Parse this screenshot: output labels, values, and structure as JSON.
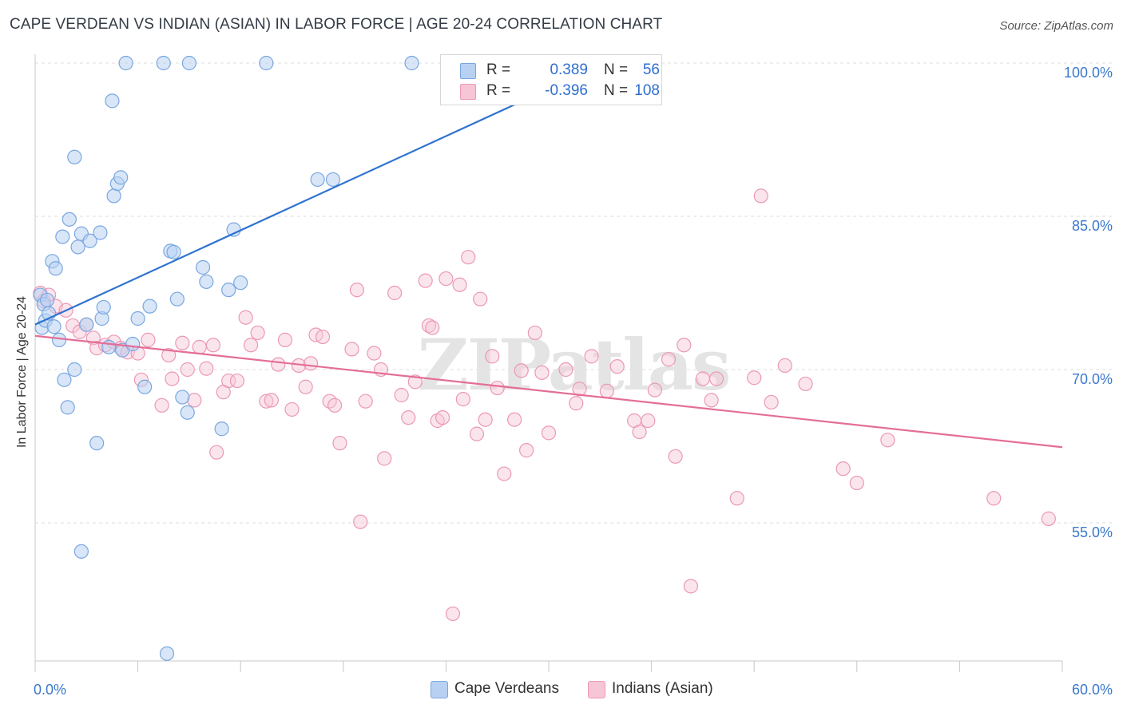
{
  "title": "CAPE VERDEAN VS INDIAN (ASIAN) IN LABOR FORCE | AGE 20-24 CORRELATION CHART",
  "source": "Source: ZipAtlas.com",
  "watermark": "ZIPatlas",
  "colors": {
    "blue_fill": "#b8d1f2",
    "blue_stroke": "#7aa7e0",
    "blue_line": "#2f73d0",
    "pink_fill": "#f7c6d6",
    "pink_stroke": "#eb98b4",
    "pink_line": "#e46e98",
    "axis_text": "#3b78cc",
    "grid": "#dcdcdc"
  },
  "legend": {
    "rows": [
      {
        "r_label": "R =",
        "r_value": "0.389",
        "n_label": "N =",
        "n_value": "56",
        "color": "#b8d1f2",
        "border": "#7aa7e0"
      },
      {
        "r_label": "R =",
        "r_value": "-0.396",
        "n_label": "N =",
        "n_value": "108",
        "color": "#f7c6d6",
        "border": "#eb98b4"
      }
    ]
  },
  "bottom_legend": [
    {
      "label": "Cape Verdeans",
      "color": "#b8d1f2",
      "border": "#7aa7e0"
    },
    {
      "label": "Indians (Asian)",
      "color": "#f7c6d6",
      "border": "#eb98b4"
    }
  ],
  "chart_data": {
    "type": "scatter",
    "title": "CAPE VERDEAN VS INDIAN (ASIAN) IN LABOR FORCE | AGE 20-24 CORRELATION CHART",
    "xlabel": "",
    "ylabel": "In Labor Force | Age 20-24",
    "xlim": [
      0,
      60
    ],
    "ylim": [
      40,
      102
    ],
    "x_tick_labels": [
      {
        "value": 0,
        "label": "0.0%"
      },
      {
        "value": 60,
        "label": "60.0%"
      }
    ],
    "y_tick_labels": [
      {
        "value": 55,
        "label": "55.0%"
      },
      {
        "value": 70,
        "label": "70.0%"
      },
      {
        "value": 85,
        "label": "85.0%"
      },
      {
        "value": 100,
        "label": "100.0%"
      }
    ],
    "series": [
      {
        "name": "Cape Verdeans",
        "R": 0.389,
        "N": 56,
        "trend": {
          "x0": 0,
          "y0": 74.4,
          "x1": 33.3,
          "y1": 100.0
        },
        "points": [
          [
            0.3,
            77.3
          ],
          [
            0.4,
            74.1
          ],
          [
            0.5,
            76.4
          ],
          [
            0.6,
            74.8
          ],
          [
            0.7,
            76.8
          ],
          [
            0.8,
            75.5
          ],
          [
            1.0,
            80.6
          ],
          [
            1.1,
            74.2
          ],
          [
            1.2,
            79.9
          ],
          [
            1.4,
            72.9
          ],
          [
            1.6,
            83.0
          ],
          [
            1.7,
            69.0
          ],
          [
            1.9,
            66.3
          ],
          [
            2.0,
            84.7
          ],
          [
            2.3,
            90.8
          ],
          [
            2.3,
            70.0
          ],
          [
            2.5,
            82.0
          ],
          [
            2.7,
            52.2
          ],
          [
            2.7,
            83.3
          ],
          [
            3.0,
            74.4
          ],
          [
            3.2,
            82.6
          ],
          [
            3.6,
            62.8
          ],
          [
            3.8,
            83.4
          ],
          [
            3.9,
            75.0
          ],
          [
            4.0,
            76.1
          ],
          [
            4.3,
            72.2
          ],
          [
            4.5,
            96.3
          ],
          [
            4.6,
            87.0
          ],
          [
            4.8,
            88.2
          ],
          [
            5.0,
            88.8
          ],
          [
            5.1,
            71.9
          ],
          [
            5.3,
            100.0
          ],
          [
            5.7,
            72.5
          ],
          [
            6.0,
            75.0
          ],
          [
            6.4,
            68.3
          ],
          [
            6.7,
            76.2
          ],
          [
            7.5,
            100.0
          ],
          [
            7.7,
            42.2
          ],
          [
            7.9,
            81.6
          ],
          [
            8.1,
            81.5
          ],
          [
            8.3,
            76.9
          ],
          [
            8.6,
            67.3
          ],
          [
            8.9,
            65.8
          ],
          [
            9.0,
            100.0
          ],
          [
            9.8,
            80.0
          ],
          [
            10.0,
            78.6
          ],
          [
            10.9,
            64.2
          ],
          [
            11.3,
            77.8
          ],
          [
            11.6,
            83.7
          ],
          [
            12.0,
            78.5
          ],
          [
            13.5,
            100.0
          ],
          [
            16.5,
            88.6
          ],
          [
            17.4,
            88.6
          ],
          [
            22.0,
            100.0
          ]
        ]
      },
      {
        "name": "Indians (Asian)",
        "R": -0.396,
        "N": 108,
        "trend": {
          "x0": 0,
          "y0": 73.3,
          "x1": 60,
          "y1": 62.4
        },
        "points": [
          [
            0.3,
            77.5
          ],
          [
            0.5,
            76.7
          ],
          [
            0.8,
            77.3
          ],
          [
            1.2,
            76.2
          ],
          [
            1.8,
            75.8
          ],
          [
            2.2,
            74.3
          ],
          [
            2.6,
            73.7
          ],
          [
            3.0,
            74.4
          ],
          [
            3.4,
            73.1
          ],
          [
            3.6,
            72.1
          ],
          [
            4.1,
            72.4
          ],
          [
            4.6,
            72.7
          ],
          [
            5.0,
            72.1
          ],
          [
            5.4,
            71.7
          ],
          [
            6.0,
            71.6
          ],
          [
            6.2,
            69.0
          ],
          [
            6.6,
            72.9
          ],
          [
            7.4,
            66.5
          ],
          [
            7.8,
            71.4
          ],
          [
            8.0,
            69.1
          ],
          [
            8.6,
            72.6
          ],
          [
            8.9,
            70.0
          ],
          [
            9.3,
            67.0
          ],
          [
            9.6,
            72.2
          ],
          [
            10.0,
            70.1
          ],
          [
            10.4,
            72.4
          ],
          [
            10.6,
            61.9
          ],
          [
            11.0,
            67.8
          ],
          [
            11.3,
            68.9
          ],
          [
            11.8,
            68.9
          ],
          [
            12.3,
            75.1
          ],
          [
            12.6,
            72.4
          ],
          [
            13.0,
            73.6
          ],
          [
            13.5,
            66.9
          ],
          [
            13.8,
            67.0
          ],
          [
            14.2,
            70.5
          ],
          [
            14.6,
            72.9
          ],
          [
            15.0,
            66.1
          ],
          [
            15.4,
            70.4
          ],
          [
            15.8,
            68.3
          ],
          [
            16.1,
            70.6
          ],
          [
            16.4,
            73.4
          ],
          [
            16.8,
            73.2
          ],
          [
            17.2,
            66.9
          ],
          [
            17.5,
            66.5
          ],
          [
            17.8,
            62.8
          ],
          [
            18.5,
            72.0
          ],
          [
            18.8,
            77.8
          ],
          [
            19.0,
            55.1
          ],
          [
            19.3,
            66.9
          ],
          [
            19.8,
            71.6
          ],
          [
            20.2,
            70.0
          ],
          [
            20.4,
            61.3
          ],
          [
            21.0,
            77.5
          ],
          [
            21.4,
            67.5
          ],
          [
            21.8,
            65.3
          ],
          [
            22.2,
            68.8
          ],
          [
            22.8,
            78.7
          ],
          [
            23.0,
            74.3
          ],
          [
            23.2,
            74.1
          ],
          [
            23.5,
            65.0
          ],
          [
            23.8,
            65.3
          ],
          [
            24.0,
            78.9
          ],
          [
            24.4,
            46.1
          ],
          [
            24.8,
            78.3
          ],
          [
            25.0,
            67.1
          ],
          [
            25.3,
            81.0
          ],
          [
            25.8,
            63.7
          ],
          [
            26.0,
            76.9
          ],
          [
            26.3,
            65.1
          ],
          [
            26.7,
            71.3
          ],
          [
            27.0,
            68.2
          ],
          [
            27.4,
            59.8
          ],
          [
            28.0,
            65.1
          ],
          [
            28.4,
            69.9
          ],
          [
            28.7,
            62.1
          ],
          [
            29.2,
            73.6
          ],
          [
            29.6,
            69.7
          ],
          [
            30.0,
            63.8
          ],
          [
            31.0,
            70.0
          ],
          [
            31.6,
            66.7
          ],
          [
            31.8,
            68.1
          ],
          [
            32.5,
            71.3
          ],
          [
            33.4,
            67.9
          ],
          [
            34.0,
            70.3
          ],
          [
            35.0,
            65.0
          ],
          [
            35.3,
            63.9
          ],
          [
            35.8,
            65.0
          ],
          [
            36.2,
            68.0
          ],
          [
            37.0,
            71.0
          ],
          [
            37.4,
            61.5
          ],
          [
            37.9,
            72.4
          ],
          [
            38.3,
            48.8
          ],
          [
            39.0,
            69.1
          ],
          [
            39.5,
            67.0
          ],
          [
            39.8,
            69.1
          ],
          [
            41.0,
            57.4
          ],
          [
            42.0,
            69.2
          ],
          [
            42.4,
            87.0
          ],
          [
            43.0,
            66.8
          ],
          [
            43.8,
            70.4
          ],
          [
            45.0,
            68.6
          ],
          [
            47.2,
            60.3
          ],
          [
            48.0,
            58.9
          ],
          [
            49.8,
            63.1
          ],
          [
            56.0,
            57.4
          ],
          [
            59.2,
            55.4
          ]
        ]
      }
    ]
  }
}
